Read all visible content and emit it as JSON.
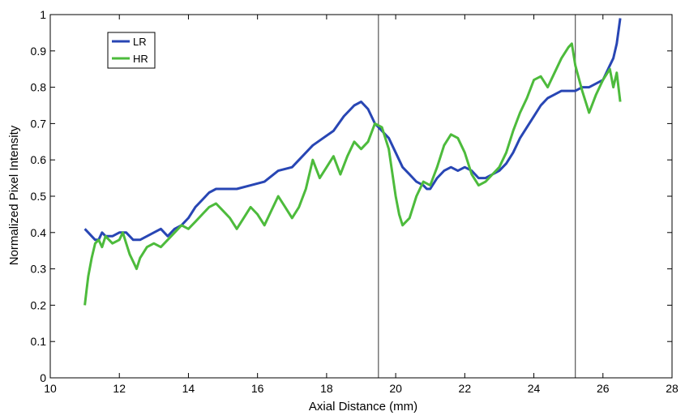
{
  "chart_data": {
    "type": "line",
    "title": "",
    "xlabel": "Axial Distance (mm)",
    "ylabel": "Normalized Pixel Intensity",
    "xlim": [
      10,
      28
    ],
    "ylim": [
      0,
      1
    ],
    "x_ticks": [
      10,
      12,
      14,
      16,
      18,
      20,
      22,
      24,
      26,
      28
    ],
    "y_ticks": [
      0,
      0.1,
      0.2,
      0.3,
      0.4,
      0.5,
      0.6,
      0.7,
      0.8,
      0.9,
      1
    ],
    "x_tick_labels": [
      "10",
      "12",
      "14",
      "16",
      "18",
      "20",
      "22",
      "24",
      "26",
      "28"
    ],
    "y_tick_labels": [
      "0",
      "0.1",
      "0.2",
      "0.3",
      "0.4",
      "0.5",
      "0.6",
      "0.7",
      "0.8",
      "0.9",
      "1"
    ],
    "grid": false,
    "legend_position": "top-left",
    "vertical_lines": [
      19.5,
      25.2
    ],
    "series": [
      {
        "name": "LR",
        "color": "#2846b4",
        "points": [
          [
            11.0,
            0.41
          ],
          [
            11.1,
            0.4
          ],
          [
            11.2,
            0.39
          ],
          [
            11.3,
            0.38
          ],
          [
            11.4,
            0.38
          ],
          [
            11.5,
            0.4
          ],
          [
            11.6,
            0.39
          ],
          [
            11.8,
            0.39
          ],
          [
            12.0,
            0.4
          ],
          [
            12.2,
            0.4
          ],
          [
            12.4,
            0.38
          ],
          [
            12.6,
            0.38
          ],
          [
            12.8,
            0.39
          ],
          [
            13.0,
            0.4
          ],
          [
            13.2,
            0.41
          ],
          [
            13.4,
            0.39
          ],
          [
            13.6,
            0.41
          ],
          [
            13.8,
            0.42
          ],
          [
            14.0,
            0.44
          ],
          [
            14.2,
            0.47
          ],
          [
            14.4,
            0.49
          ],
          [
            14.6,
            0.51
          ],
          [
            14.8,
            0.52
          ],
          [
            15.0,
            0.52
          ],
          [
            15.4,
            0.52
          ],
          [
            15.8,
            0.53
          ],
          [
            16.2,
            0.54
          ],
          [
            16.6,
            0.57
          ],
          [
            17.0,
            0.58
          ],
          [
            17.3,
            0.61
          ],
          [
            17.6,
            0.64
          ],
          [
            17.9,
            0.66
          ],
          [
            18.2,
            0.68
          ],
          [
            18.5,
            0.72
          ],
          [
            18.8,
            0.75
          ],
          [
            19.0,
            0.76
          ],
          [
            19.2,
            0.74
          ],
          [
            19.4,
            0.7
          ],
          [
            19.6,
            0.68
          ],
          [
            19.8,
            0.66
          ],
          [
            20.0,
            0.62
          ],
          [
            20.2,
            0.58
          ],
          [
            20.4,
            0.56
          ],
          [
            20.6,
            0.54
          ],
          [
            20.8,
            0.53
          ],
          [
            20.9,
            0.52
          ],
          [
            21.0,
            0.52
          ],
          [
            21.2,
            0.55
          ],
          [
            21.4,
            0.57
          ],
          [
            21.6,
            0.58
          ],
          [
            21.8,
            0.57
          ],
          [
            22.0,
            0.58
          ],
          [
            22.2,
            0.57
          ],
          [
            22.4,
            0.55
          ],
          [
            22.6,
            0.55
          ],
          [
            22.8,
            0.56
          ],
          [
            23.0,
            0.57
          ],
          [
            23.2,
            0.59
          ],
          [
            23.4,
            0.62
          ],
          [
            23.6,
            0.66
          ],
          [
            23.8,
            0.69
          ],
          [
            24.0,
            0.72
          ],
          [
            24.2,
            0.75
          ],
          [
            24.4,
            0.77
          ],
          [
            24.6,
            0.78
          ],
          [
            24.8,
            0.79
          ],
          [
            25.0,
            0.79
          ],
          [
            25.2,
            0.79
          ],
          [
            25.4,
            0.8
          ],
          [
            25.6,
            0.8
          ],
          [
            25.8,
            0.81
          ],
          [
            26.0,
            0.82
          ],
          [
            26.2,
            0.86
          ],
          [
            26.3,
            0.88
          ],
          [
            26.4,
            0.92
          ],
          [
            26.5,
            0.99
          ]
        ]
      },
      {
        "name": "HR",
        "color": "#4dbb3c",
        "points": [
          [
            11.0,
            0.2
          ],
          [
            11.05,
            0.24
          ],
          [
            11.1,
            0.28
          ],
          [
            11.2,
            0.33
          ],
          [
            11.3,
            0.37
          ],
          [
            11.4,
            0.38
          ],
          [
            11.5,
            0.36
          ],
          [
            11.6,
            0.39
          ],
          [
            11.8,
            0.37
          ],
          [
            12.0,
            0.38
          ],
          [
            12.1,
            0.4
          ],
          [
            12.2,
            0.37
          ],
          [
            12.3,
            0.34
          ],
          [
            12.4,
            0.32
          ],
          [
            12.5,
            0.3
          ],
          [
            12.6,
            0.33
          ],
          [
            12.8,
            0.36
          ],
          [
            13.0,
            0.37
          ],
          [
            13.2,
            0.36
          ],
          [
            13.4,
            0.38
          ],
          [
            13.6,
            0.4
          ],
          [
            13.8,
            0.42
          ],
          [
            14.0,
            0.41
          ],
          [
            14.2,
            0.43
          ],
          [
            14.4,
            0.45
          ],
          [
            14.6,
            0.47
          ],
          [
            14.8,
            0.48
          ],
          [
            15.0,
            0.46
          ],
          [
            15.2,
            0.44
          ],
          [
            15.4,
            0.41
          ],
          [
            15.6,
            0.44
          ],
          [
            15.8,
            0.47
          ],
          [
            16.0,
            0.45
          ],
          [
            16.2,
            0.42
          ],
          [
            16.4,
            0.46
          ],
          [
            16.6,
            0.5
          ],
          [
            16.8,
            0.47
          ],
          [
            17.0,
            0.44
          ],
          [
            17.2,
            0.47
          ],
          [
            17.4,
            0.52
          ],
          [
            17.6,
            0.6
          ],
          [
            17.8,
            0.55
          ],
          [
            18.0,
            0.58
          ],
          [
            18.2,
            0.61
          ],
          [
            18.4,
            0.56
          ],
          [
            18.6,
            0.61
          ],
          [
            18.8,
            0.65
          ],
          [
            19.0,
            0.63
          ],
          [
            19.2,
            0.65
          ],
          [
            19.4,
            0.7
          ],
          [
            19.6,
            0.69
          ],
          [
            19.8,
            0.63
          ],
          [
            20.0,
            0.5
          ],
          [
            20.1,
            0.45
          ],
          [
            20.2,
            0.42
          ],
          [
            20.4,
            0.44
          ],
          [
            20.6,
            0.5
          ],
          [
            20.8,
            0.54
          ],
          [
            21.0,
            0.53
          ],
          [
            21.2,
            0.58
          ],
          [
            21.4,
            0.64
          ],
          [
            21.6,
            0.67
          ],
          [
            21.8,
            0.66
          ],
          [
            22.0,
            0.62
          ],
          [
            22.2,
            0.56
          ],
          [
            22.4,
            0.53
          ],
          [
            22.6,
            0.54
          ],
          [
            22.8,
            0.56
          ],
          [
            23.0,
            0.58
          ],
          [
            23.2,
            0.62
          ],
          [
            23.4,
            0.68
          ],
          [
            23.6,
            0.73
          ],
          [
            23.8,
            0.77
          ],
          [
            24.0,
            0.82
          ],
          [
            24.2,
            0.83
          ],
          [
            24.4,
            0.8
          ],
          [
            24.6,
            0.84
          ],
          [
            24.8,
            0.88
          ],
          [
            25.0,
            0.91
          ],
          [
            25.1,
            0.92
          ],
          [
            25.2,
            0.86
          ],
          [
            25.4,
            0.79
          ],
          [
            25.6,
            0.73
          ],
          [
            25.8,
            0.78
          ],
          [
            26.0,
            0.82
          ],
          [
            26.2,
            0.85
          ],
          [
            26.3,
            0.8
          ],
          [
            26.4,
            0.84
          ],
          [
            26.5,
            0.76
          ]
        ]
      }
    ]
  }
}
